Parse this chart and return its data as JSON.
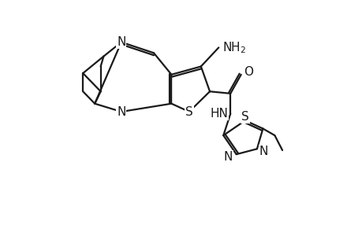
{
  "bg_color": "#ffffff",
  "line_color": "#1a1a1a",
  "line_width": 1.6,
  "font_size": 10.5,
  "figsize": [
    4.6,
    3.0
  ],
  "dpi": 100,
  "xlim": [
    -0.5,
    10.5
  ],
  "ylim": [
    -2.5,
    7.5
  ]
}
